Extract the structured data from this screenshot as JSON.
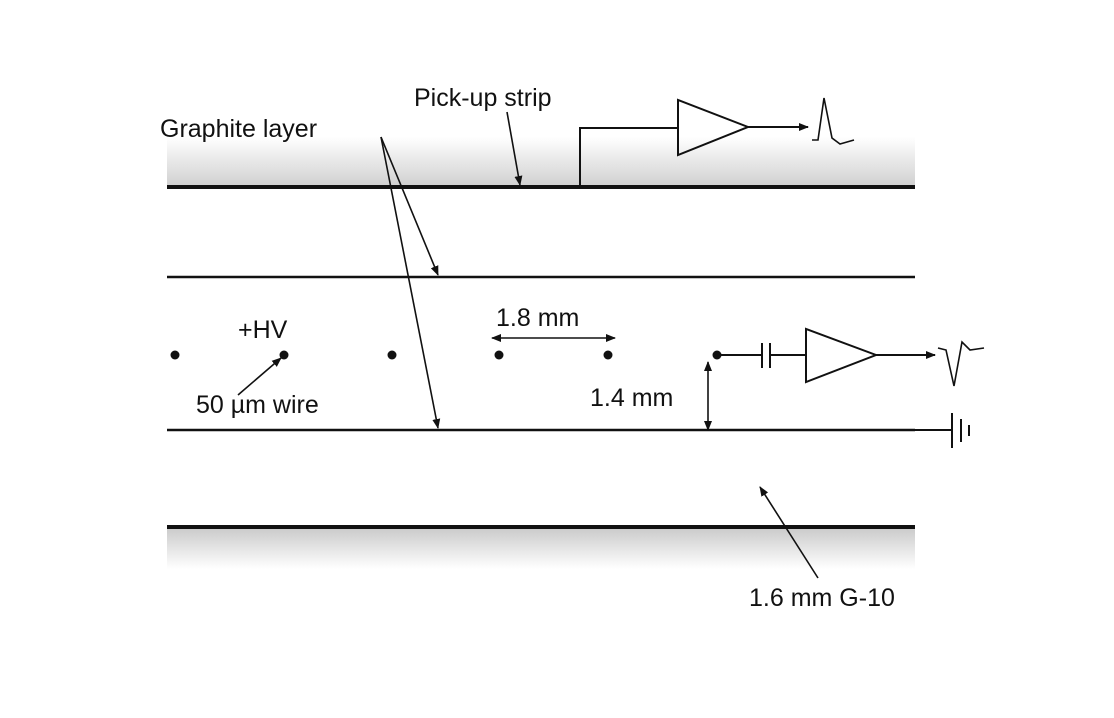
{
  "diagram": {
    "labels": {
      "pickup_strip": "Pick-up strip",
      "graphite_layer": "Graphite layer",
      "hv": "+HV",
      "wire": "50 µm wire",
      "wire_pitch": "1.8 mm",
      "gap": "1.4 mm",
      "g10": "1.6 mm G-10"
    }
  }
}
